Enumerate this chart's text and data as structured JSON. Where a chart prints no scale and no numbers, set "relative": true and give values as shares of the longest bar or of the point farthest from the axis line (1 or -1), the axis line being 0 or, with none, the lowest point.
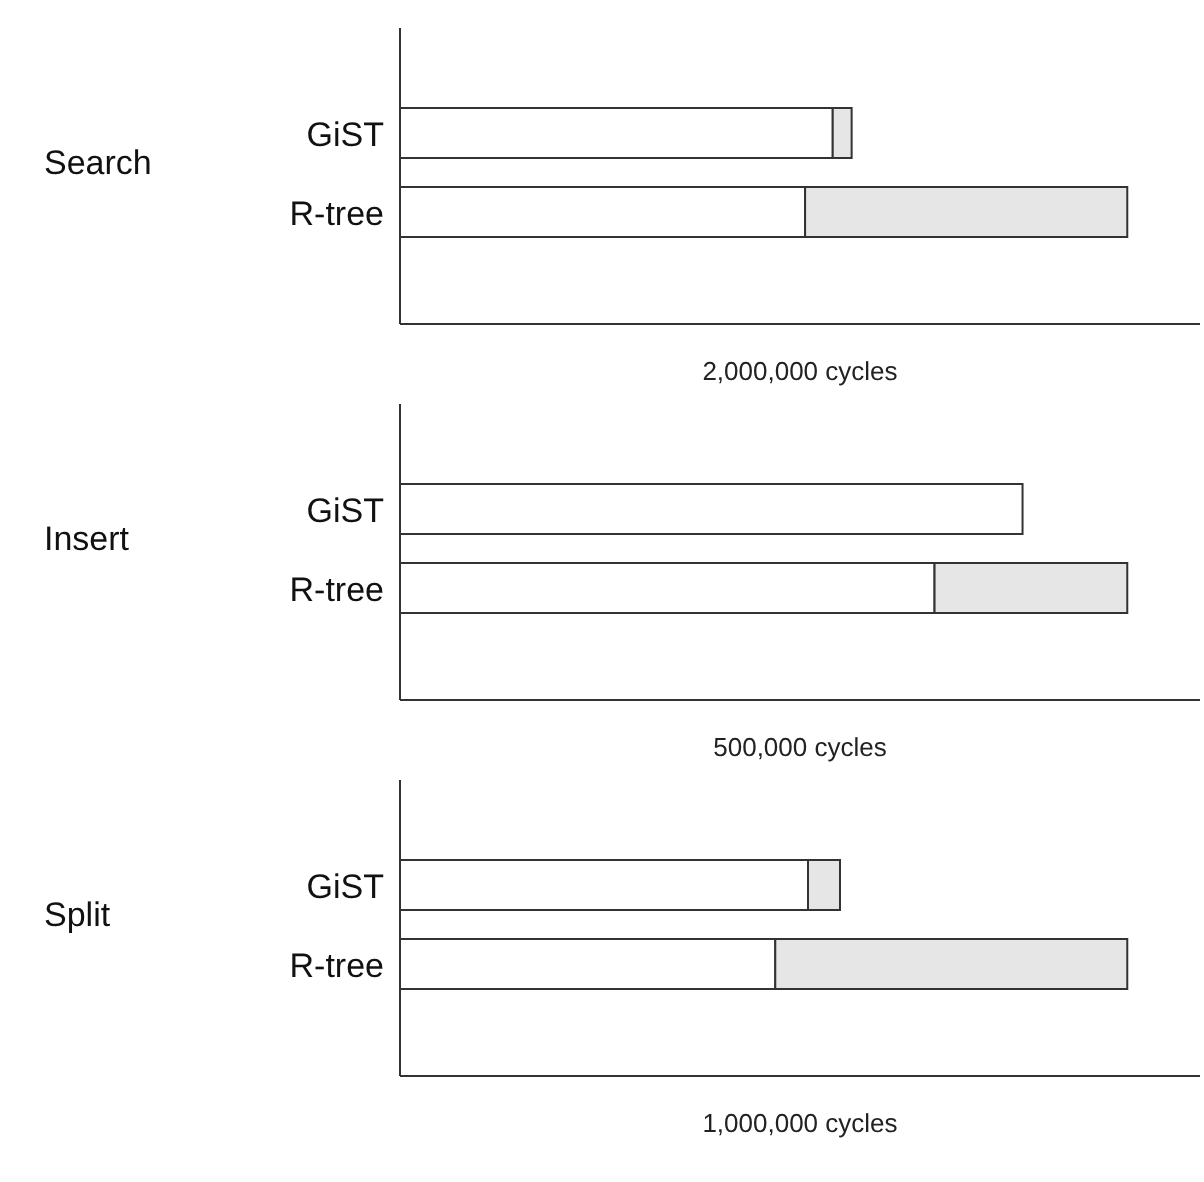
{
  "chart_data": [
    {
      "type": "bar",
      "orientation": "horizontal",
      "stacked": true,
      "relative": true,
      "title": "Search",
      "xlabel": "2,000,000 cycles",
      "categories": [
        "GiST",
        "R-tree"
      ],
      "series": [
        {
          "color": "#ffffff",
          "values": [
            0.595,
            0.557
          ]
        },
        {
          "color": "#e6e6e6",
          "values": [
            0.026,
            0.443
          ]
        }
      ]
    },
    {
      "type": "bar",
      "orientation": "horizontal",
      "stacked": true,
      "relative": true,
      "title": "Insert",
      "xlabel": "500,000 cycles",
      "categories": [
        "GiST",
        "R-tree"
      ],
      "series": [
        {
          "color": "#ffffff",
          "values": [
            0.856,
            0.735
          ]
        },
        {
          "color": "#e6e6e6",
          "values": [
            null,
            0.265
          ]
        }
      ]
    },
    {
      "type": "bar",
      "orientation": "horizontal",
      "stacked": true,
      "relative": true,
      "title": "Split",
      "xlabel": "1,000,000 cycles",
      "categories": [
        "GiST",
        "R-tree"
      ],
      "series": [
        {
          "color": "#ffffff",
          "values": [
            0.561,
            0.516
          ]
        },
        {
          "color": "#e6e6e6",
          "values": [
            0.044,
            0.484
          ]
        }
      ]
    }
  ]
}
